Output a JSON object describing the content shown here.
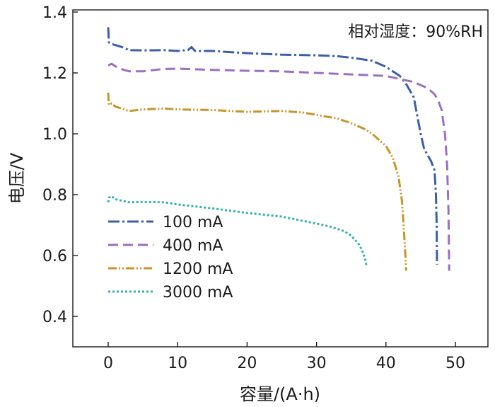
{
  "chart_data": {
    "type": "line",
    "title": "",
    "annotation": "相对湿度：90%RH",
    "xlabel": "容量/(A·h)",
    "ylabel": "电压/V",
    "xlim": [
      -5,
      55
    ],
    "ylim": [
      0.35,
      1.4
    ],
    "xticks": [
      0,
      10,
      20,
      30,
      40,
      50
    ],
    "yticks": [
      0.4,
      0.6,
      0.8,
      1.0,
      1.2,
      1.4
    ],
    "xtick_labels": [
      "0",
      "10",
      "20",
      "30",
      "40",
      "50"
    ],
    "ytick_labels": [
      "0.4",
      "0.6",
      "0.8",
      "1.0",
      "1.2",
      "1.4"
    ],
    "grid": false,
    "legend_position": "lower-left",
    "series": [
      {
        "name": "100 mA",
        "color": "#3a5fae",
        "dash": "dash-dot",
        "points": [
          [
            0,
            1.35
          ],
          [
            0.1,
            1.3
          ],
          [
            0.5,
            1.295
          ],
          [
            2,
            1.285
          ],
          [
            3,
            1.275
          ],
          [
            5,
            1.274
          ],
          [
            8,
            1.275
          ],
          [
            10,
            1.272
          ],
          [
            11.5,
            1.275
          ],
          [
            12,
            1.285
          ],
          [
            12.5,
            1.272
          ],
          [
            15,
            1.272
          ],
          [
            20,
            1.265
          ],
          [
            25,
            1.26
          ],
          [
            30,
            1.258
          ],
          [
            33,
            1.255
          ],
          [
            35,
            1.25
          ],
          [
            38,
            1.24
          ],
          [
            40,
            1.22
          ],
          [
            42,
            1.19
          ],
          [
            43,
            1.16
          ],
          [
            44,
            1.12
          ],
          [
            44.5,
            1.06
          ],
          [
            45,
            1.0
          ],
          [
            45.5,
            0.95
          ],
          [
            46,
            0.93
          ],
          [
            46.5,
            0.91
          ],
          [
            47,
            0.88
          ],
          [
            47.2,
            0.8
          ],
          [
            47.3,
            0.7
          ],
          [
            47.35,
            0.57
          ]
        ]
      },
      {
        "name": "400 mA",
        "color": "#9b6fc1",
        "dash": "dashed",
        "points": [
          [
            0,
            1.225
          ],
          [
            0.5,
            1.23
          ],
          [
            1.5,
            1.215
          ],
          [
            3,
            1.205
          ],
          [
            5,
            1.205
          ],
          [
            8,
            1.213
          ],
          [
            10,
            1.214
          ],
          [
            15,
            1.21
          ],
          [
            20,
            1.207
          ],
          [
            25,
            1.205
          ],
          [
            30,
            1.2
          ],
          [
            35,
            1.195
          ],
          [
            40,
            1.19
          ],
          [
            42,
            1.18
          ],
          [
            44,
            1.17
          ],
          [
            45,
            1.16
          ],
          [
            46,
            1.15
          ],
          [
            47,
            1.13
          ],
          [
            47.5,
            1.11
          ],
          [
            48,
            1.08
          ],
          [
            48.5,
            1.0
          ],
          [
            48.8,
            0.9
          ],
          [
            49,
            0.75
          ],
          [
            49.1,
            0.55
          ]
        ]
      },
      {
        "name": "1200 mA",
        "color": "#c99328",
        "dash": "dash-dot-dot",
        "points": [
          [
            0,
            1.135
          ],
          [
            0.1,
            1.095
          ],
          [
            0.5,
            1.1
          ],
          [
            1,
            1.09
          ],
          [
            3,
            1.075
          ],
          [
            5,
            1.08
          ],
          [
            8,
            1.083
          ],
          [
            10,
            1.08
          ],
          [
            15,
            1.078
          ],
          [
            20,
            1.072
          ],
          [
            25,
            1.075
          ],
          [
            28,
            1.07
          ],
          [
            30,
            1.062
          ],
          [
            33,
            1.05
          ],
          [
            35,
            1.035
          ],
          [
            37,
            1.015
          ],
          [
            38,
            1.0
          ],
          [
            39,
            0.98
          ],
          [
            40,
            0.96
          ],
          [
            41,
            0.92
          ],
          [
            41.8,
            0.86
          ],
          [
            42.3,
            0.78
          ],
          [
            42.6,
            0.68
          ],
          [
            42.8,
            0.6
          ],
          [
            42.9,
            0.55
          ]
        ]
      },
      {
        "name": "3000 mA",
        "color": "#2fb3a8",
        "dash": "dotted",
        "points": [
          [
            0,
            0.775
          ],
          [
            0.1,
            0.79
          ],
          [
            0.5,
            0.795
          ],
          [
            1,
            0.785
          ],
          [
            2,
            0.78
          ],
          [
            3,
            0.775
          ],
          [
            5,
            0.776
          ],
          [
            8,
            0.775
          ],
          [
            10,
            0.768
          ],
          [
            15,
            0.755
          ],
          [
            20,
            0.74
          ],
          [
            25,
            0.728
          ],
          [
            30,
            0.705
          ],
          [
            32,
            0.695
          ],
          [
            34,
            0.68
          ],
          [
            35,
            0.665
          ],
          [
            36,
            0.64
          ],
          [
            36.5,
            0.62
          ],
          [
            37,
            0.59
          ],
          [
            37.2,
            0.565
          ]
        ]
      }
    ]
  }
}
